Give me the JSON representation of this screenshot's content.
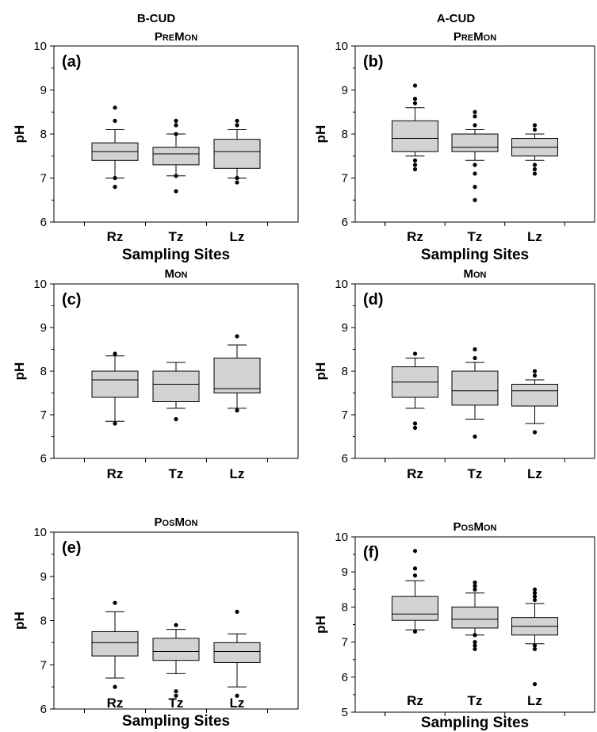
{
  "column_headers": [
    "B-CUD",
    "A-CUD"
  ],
  "chart_data": [
    {
      "type": "box",
      "panel_label": "(a)",
      "title": {
        "big1": "P",
        "small1": "RE",
        "big2": "M",
        "small2": "ON"
      },
      "ylabel": "pH",
      "xlabel": "Sampling Sites",
      "categories": [
        "Rz",
        "Tz",
        "Lz"
      ],
      "ylim": [
        6,
        10
      ],
      "yticks": [
        6,
        7,
        8,
        9,
        10
      ],
      "boxes": [
        {
          "whisker_low": 7.0,
          "q1": 7.4,
          "median": 7.6,
          "q3": 7.8,
          "whisker_high": 8.1,
          "outliers": [
            6.8,
            7.0,
            8.3,
            8.6
          ]
        },
        {
          "whisker_low": 7.05,
          "q1": 7.3,
          "median": 7.55,
          "q3": 7.7,
          "whisker_high": 8.0,
          "outliers": [
            6.7,
            7.05,
            8.0,
            8.2,
            8.3
          ]
        },
        {
          "whisker_low": 7.0,
          "q1": 7.22,
          "median": 7.6,
          "q3": 7.88,
          "whisker_high": 8.1,
          "outliers": [
            6.9,
            7.0,
            8.2,
            8.3
          ]
        }
      ]
    },
    {
      "type": "box",
      "panel_label": "(b)",
      "title": {
        "big1": "P",
        "small1": "RE",
        "big2": "M",
        "small2": "ON"
      },
      "ylabel": "pH",
      "xlabel": "Sampling Sites",
      "categories": [
        "Rz",
        "Tz",
        "Lz"
      ],
      "ylim": [
        6,
        10
      ],
      "yticks": [
        6,
        7,
        8,
        9,
        10
      ],
      "boxes": [
        {
          "whisker_low": 7.5,
          "q1": 7.6,
          "median": 7.9,
          "q3": 8.3,
          "whisker_high": 8.6,
          "outliers": [
            7.2,
            7.3,
            7.4,
            8.7,
            8.8,
            9.1
          ]
        },
        {
          "whisker_low": 7.4,
          "q1": 7.6,
          "median": 7.7,
          "q3": 8.0,
          "whisker_high": 8.1,
          "outliers": [
            6.5,
            6.8,
            7.1,
            7.3,
            8.2,
            8.4,
            8.5
          ]
        },
        {
          "whisker_low": 7.4,
          "q1": 7.5,
          "median": 7.7,
          "q3": 7.9,
          "whisker_high": 8.0,
          "outliers": [
            7.1,
            7.2,
            7.3,
            8.1,
            8.2
          ]
        }
      ]
    },
    {
      "type": "box",
      "panel_label": "(c)",
      "title": {
        "big1": "",
        "small1": "",
        "big2": "M",
        "small2": "ON"
      },
      "ylabel": "pH",
      "xlabel": "",
      "categories": [
        "Rz",
        "Tz",
        "Lz"
      ],
      "ylim": [
        6,
        10
      ],
      "yticks": [
        6,
        7,
        8,
        9,
        10
      ],
      "boxes": [
        {
          "whisker_low": 6.85,
          "q1": 7.4,
          "median": 7.8,
          "q3": 8.0,
          "whisker_high": 8.35,
          "outliers": [
            6.8,
            8.4
          ]
        },
        {
          "whisker_low": 7.15,
          "q1": 7.3,
          "median": 7.7,
          "q3": 8.0,
          "whisker_high": 8.2,
          "outliers": [
            6.9
          ]
        },
        {
          "whisker_low": 7.15,
          "q1": 7.5,
          "median": 7.6,
          "q3": 8.3,
          "whisker_high": 8.6,
          "outliers": [
            7.1,
            8.8
          ]
        }
      ]
    },
    {
      "type": "box",
      "panel_label": "(d)",
      "title": {
        "big1": "",
        "small1": "",
        "big2": "M",
        "small2": "ON"
      },
      "ylabel": "pH",
      "xlabel": "",
      "categories": [
        "Rz",
        "Tz",
        "Lz"
      ],
      "ylim": [
        6,
        10
      ],
      "yticks": [
        6,
        7,
        8,
        9,
        10
      ],
      "boxes": [
        {
          "whisker_low": 7.15,
          "q1": 7.4,
          "median": 7.75,
          "q3": 8.1,
          "whisker_high": 8.3,
          "outliers": [
            6.7,
            6.8,
            8.4
          ]
        },
        {
          "whisker_low": 6.9,
          "q1": 7.22,
          "median": 7.55,
          "q3": 8.0,
          "whisker_high": 8.2,
          "outliers": [
            6.5,
            8.3,
            8.5
          ]
        },
        {
          "whisker_low": 6.8,
          "q1": 7.2,
          "median": 7.55,
          "q3": 7.7,
          "whisker_high": 7.8,
          "outliers": [
            6.6,
            7.9,
            8.0
          ]
        }
      ]
    },
    {
      "type": "box",
      "panel_label": "(e)",
      "title": {
        "big1": "P",
        "small1": "OS",
        "big2": "M",
        "small2": "ON"
      },
      "ylabel": "pH",
      "xlabel": "Sampling Sites",
      "categories": [
        "Rz",
        "Tz",
        "Lz"
      ],
      "ylim": [
        6,
        10
      ],
      "yticks": [
        6,
        7,
        8,
        9,
        10
      ],
      "boxes": [
        {
          "whisker_low": 6.7,
          "q1": 7.2,
          "median": 7.5,
          "q3": 7.75,
          "whisker_high": 8.2,
          "outliers": [
            6.5,
            8.4
          ]
        },
        {
          "whisker_low": 6.8,
          "q1": 7.1,
          "median": 7.3,
          "q3": 7.6,
          "whisker_high": 7.8,
          "outliers": [
            6.3,
            6.4,
            7.9
          ]
        },
        {
          "whisker_low": 6.5,
          "q1": 7.05,
          "median": 7.3,
          "q3": 7.5,
          "whisker_high": 7.7,
          "outliers": [
            6.3,
            8.2
          ]
        }
      ]
    },
    {
      "type": "box",
      "panel_label": "(f)",
      "title": {
        "big1": "P",
        "small1": "OS",
        "big2": "M",
        "small2": "ON"
      },
      "ylabel": "pH",
      "xlabel": "Sampling Sites",
      "categories": [
        "Rz",
        "Tz",
        "Lz"
      ],
      "ylim": [
        5,
        10
      ],
      "yticks": [
        5,
        6,
        7,
        8,
        9,
        10
      ],
      "boxes": [
        {
          "whisker_low": 7.35,
          "q1": 7.62,
          "median": 7.8,
          "q3": 8.3,
          "whisker_high": 8.75,
          "outliers": [
            7.3,
            8.9,
            9.1,
            9.6
          ]
        },
        {
          "whisker_low": 7.2,
          "q1": 7.4,
          "median": 7.65,
          "q3": 8.0,
          "whisker_high": 8.4,
          "outliers": [
            6.8,
            6.9,
            7.0,
            7.2,
            8.5,
            8.6,
            8.7
          ]
        },
        {
          "whisker_low": 6.95,
          "q1": 7.2,
          "median": 7.45,
          "q3": 7.7,
          "whisker_high": 8.1,
          "outliers": [
            5.8,
            6.8,
            6.9,
            8.2,
            8.3,
            8.4,
            8.5
          ]
        }
      ]
    }
  ]
}
